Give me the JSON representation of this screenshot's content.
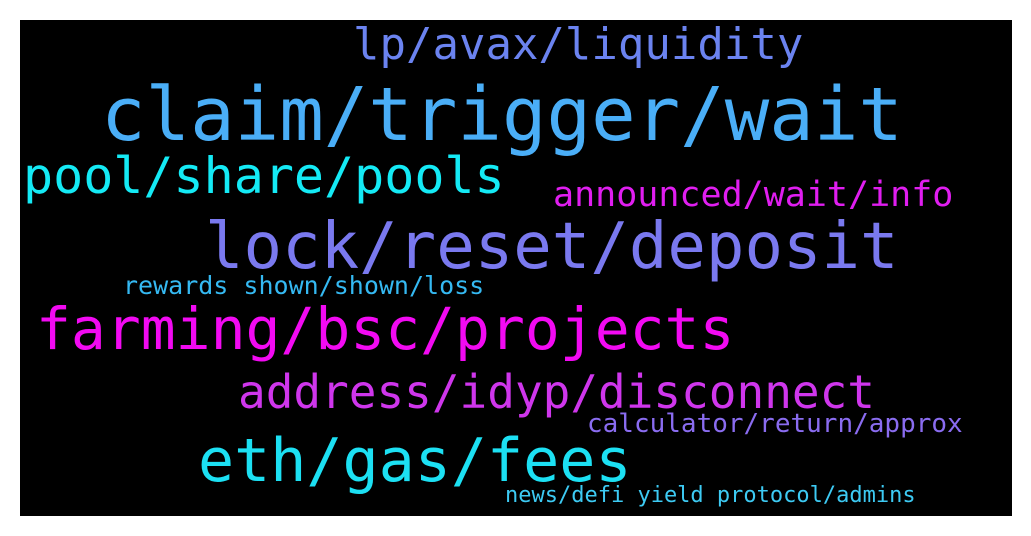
{
  "wordcloud": {
    "background": "#000000",
    "words": [
      {
        "text": "lp/avax/liquidity",
        "color": "#6b83f0"
      },
      {
        "text": "claim/trigger/wait",
        "color": "#4aaef7"
      },
      {
        "text": "pool/share/pools",
        "color": "#14eaf5"
      },
      {
        "text": "announced/wait/info",
        "color": "#e01ef0"
      },
      {
        "text": "lock/reset/deposit",
        "color": "#7a79ef"
      },
      {
        "text": "rewards shown/shown/loss",
        "color": "#35b9f2"
      },
      {
        "text": "farming/bsc/projects",
        "color": "#f20af2"
      },
      {
        "text": "address/idyp/disconnect",
        "color": "#cf36ec"
      },
      {
        "text": "calculator/return/approx",
        "color": "#8a6cf0"
      },
      {
        "text": "eth/gas/fees",
        "color": "#1ce0f3"
      },
      {
        "text": "news/defi yield protocol/admins",
        "color": "#3dcaf3"
      }
    ]
  }
}
